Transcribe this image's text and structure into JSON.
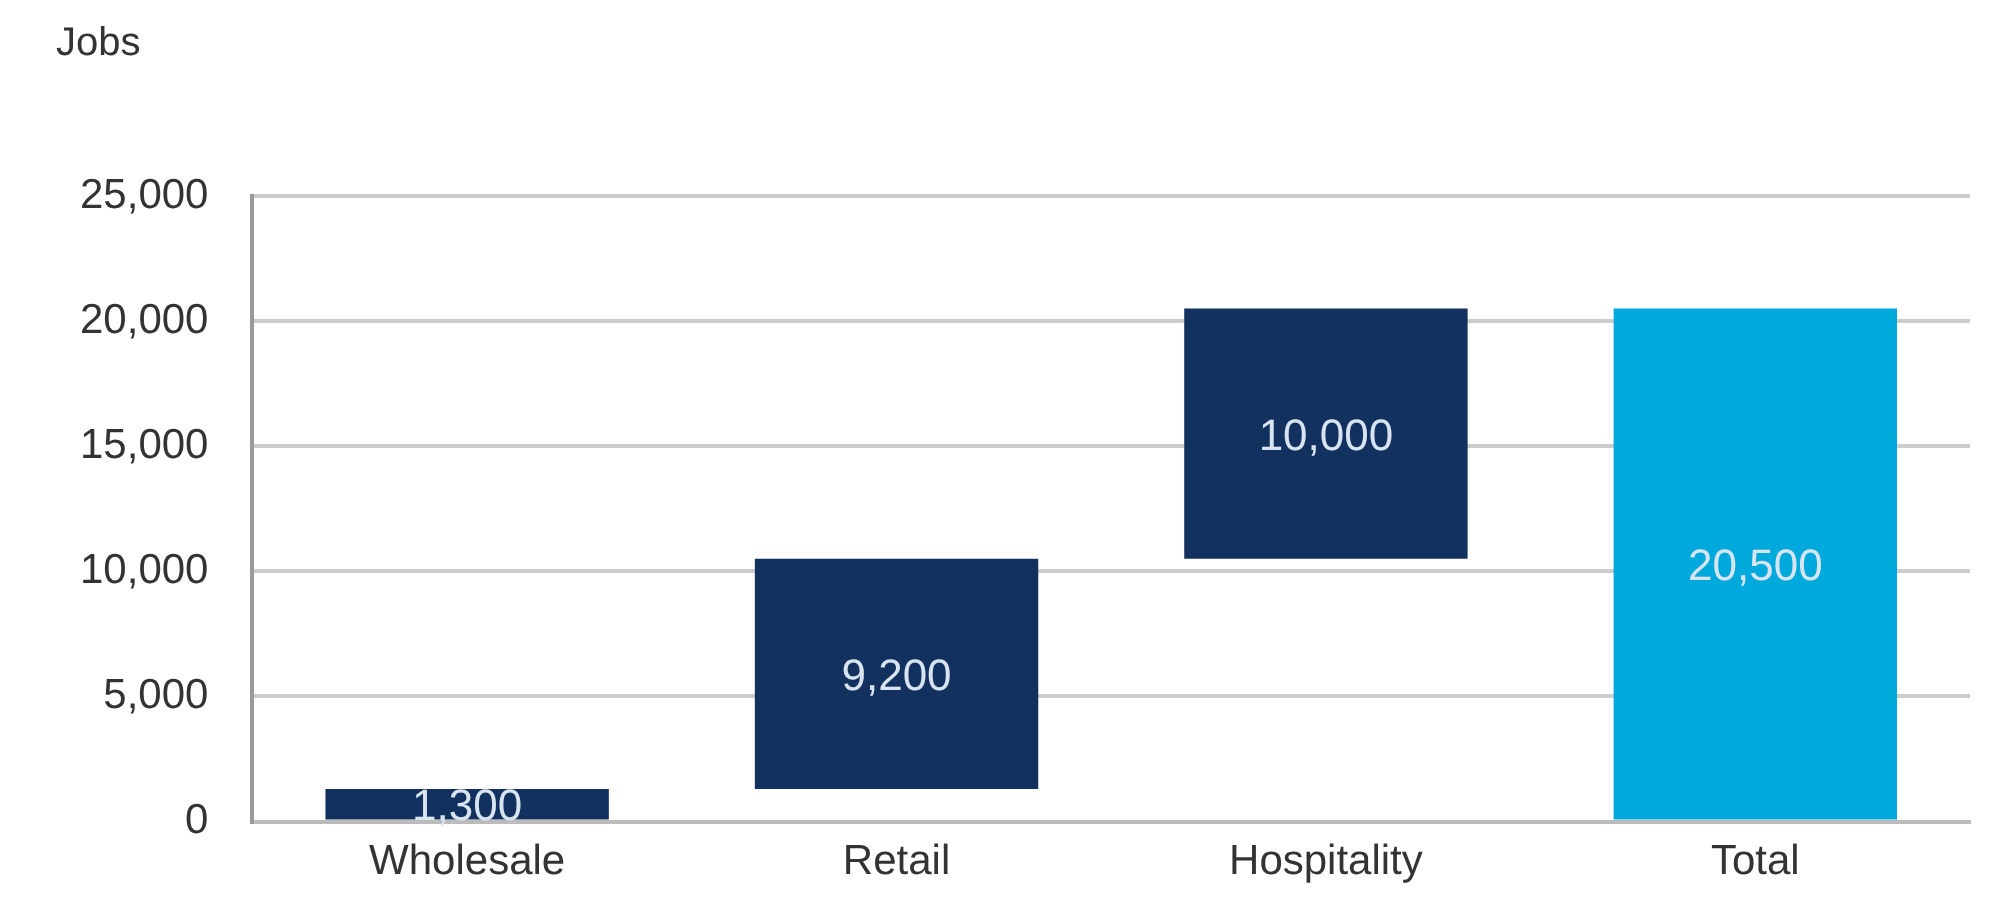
{
  "chart_data": {
    "type": "bar",
    "ylabel": "Jobs",
    "categories": [
      "Wholesale",
      "Retail",
      "Hospitality",
      "Total"
    ],
    "values": [
      1300,
      9200,
      10000,
      20500
    ],
    "base": [
      0,
      1300,
      10500,
      0
    ],
    "colors": [
      "#13315f",
      "#13315f",
      "#13315f",
      "#00a9dc"
    ],
    "value_labels": [
      "1,300",
      "9,200",
      "10,000",
      "20,500"
    ],
    "ylim": [
      0,
      25000
    ],
    "yticks": [
      {
        "value": 0,
        "label": "0"
      },
      {
        "value": 5000,
        "label": "5,000"
      },
      {
        "value": 10000,
        "label": "10,000"
      },
      {
        "value": 15000,
        "label": "15,000"
      },
      {
        "value": 20000,
        "label": "20,000"
      },
      {
        "value": 25000,
        "label": "25,000"
      }
    ],
    "grid": "y",
    "legend": false
  }
}
